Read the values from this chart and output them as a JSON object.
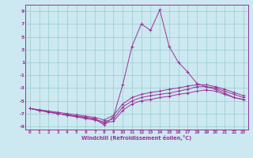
{
  "xlabel": "Windchill (Refroidissement éolien,°C)",
  "background_color": "#cce8f0",
  "line_color": "#993399",
  "grid_color": "#99cccc",
  "xlim": [
    -0.5,
    23.5
  ],
  "ylim": [
    -9.5,
    10.0
  ],
  "xticks": [
    0,
    1,
    2,
    3,
    4,
    5,
    6,
    7,
    8,
    9,
    10,
    11,
    12,
    13,
    14,
    15,
    16,
    17,
    18,
    19,
    20,
    21,
    22,
    23
  ],
  "yticks": [
    -9,
    -7,
    -5,
    -3,
    -1,
    1,
    3,
    5,
    7,
    9
  ],
  "series": [
    {
      "x": [
        0,
        1,
        2,
        3,
        4,
        5,
        6,
        7,
        8,
        9,
        10,
        11,
        12,
        13,
        14,
        15,
        16,
        17,
        18,
        19,
        20,
        21,
        22,
        23
      ],
      "y": [
        -6.2,
        -6.5,
        -6.8,
        -7.0,
        -7.2,
        -7.4,
        -7.6,
        -7.8,
        -8.8,
        -7.5,
        -2.5,
        3.5,
        7.0,
        6.0,
        9.2,
        3.5,
        1.0,
        -0.5,
        -2.3,
        -2.8,
        -3.2,
        -3.8,
        -4.5,
        -4.8
      ]
    },
    {
      "x": [
        0,
        1,
        2,
        3,
        4,
        5,
        6,
        7,
        8,
        9,
        10,
        11,
        12,
        13,
        14,
        15,
        16,
        17,
        18,
        19,
        20,
        21,
        22,
        23
      ],
      "y": [
        -6.2,
        -6.5,
        -6.7,
        -7.0,
        -7.3,
        -7.5,
        -7.8,
        -8.0,
        -8.5,
        -8.2,
        -6.5,
        -5.5,
        -5.0,
        -4.8,
        -4.5,
        -4.3,
        -4.0,
        -3.8,
        -3.5,
        -3.3,
        -3.5,
        -4.0,
        -4.5,
        -4.8
      ]
    },
    {
      "x": [
        0,
        1,
        2,
        3,
        4,
        5,
        6,
        7,
        8,
        9,
        10,
        11,
        12,
        13,
        14,
        15,
        16,
        17,
        18,
        19,
        20,
        21,
        22,
        23
      ],
      "y": [
        -6.2,
        -6.5,
        -6.7,
        -7.0,
        -7.2,
        -7.4,
        -7.6,
        -7.9,
        -8.3,
        -7.8,
        -6.0,
        -5.0,
        -4.5,
        -4.2,
        -4.0,
        -3.8,
        -3.5,
        -3.2,
        -2.8,
        -2.8,
        -3.0,
        -3.5,
        -4.0,
        -4.5
      ]
    },
    {
      "x": [
        0,
        1,
        2,
        3,
        4,
        5,
        6,
        7,
        8,
        9,
        10,
        11,
        12,
        13,
        14,
        15,
        16,
        17,
        18,
        19,
        20,
        21,
        22,
        23
      ],
      "y": [
        -6.2,
        -6.4,
        -6.6,
        -6.8,
        -7.0,
        -7.2,
        -7.4,
        -7.6,
        -8.0,
        -7.3,
        -5.5,
        -4.5,
        -4.0,
        -3.7,
        -3.5,
        -3.2,
        -3.0,
        -2.7,
        -2.5,
        -2.5,
        -2.8,
        -3.2,
        -3.7,
        -4.2
      ]
    }
  ]
}
